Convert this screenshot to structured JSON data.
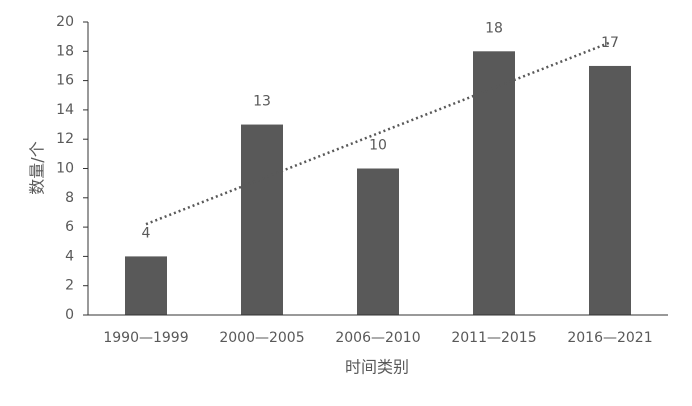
{
  "chart_data": {
    "type": "bar",
    "categories": [
      "1990—1999",
      "2000—2005",
      "2006—2010",
      "2011—2015",
      "2016—2021"
    ],
    "values": [
      4,
      13,
      10,
      18,
      17
    ],
    "color": "#595959",
    "ylim": [
      0,
      20
    ],
    "yticks": [
      0,
      2,
      4,
      6,
      8,
      10,
      12,
      14,
      16,
      18,
      20
    ],
    "xlabel": "时间类别",
    "ylabel": "数量/个",
    "trendline": "linear",
    "data_labels": true
  }
}
